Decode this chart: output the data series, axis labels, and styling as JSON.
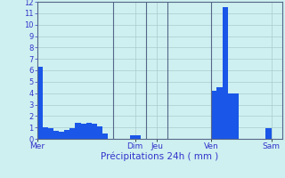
{
  "title": "Précipitations 24h ( mm )",
  "bar_color": "#1a56e8",
  "bg_color": "#cef0f0",
  "grid_color": "#aacccc",
  "text_color": "#3333cc",
  "vline_color": "#556688",
  "ylim": [
    0,
    12
  ],
  "yticks": [
    0,
    1,
    2,
    3,
    4,
    5,
    6,
    7,
    8,
    9,
    10,
    11,
    12
  ],
  "day_labels": [
    "Mer",
    "Dim",
    "Jeu",
    "Ven",
    "Sam"
  ],
  "day_tick_positions": [
    0,
    18,
    22,
    32,
    43
  ],
  "bar_values": [
    6.3,
    1.0,
    0.9,
    0.7,
    0.6,
    0.8,
    0.9,
    1.4,
    1.3,
    1.4,
    1.3,
    1.1,
    0.5,
    0.0,
    0.0,
    0.0,
    0.0,
    0.3,
    0.3,
    0.0,
    0.0,
    0.0,
    0.0,
    0.0,
    0.0,
    0.0,
    0.0,
    0.0,
    0.0,
    0.0,
    0.0,
    0.0,
    4.2,
    4.5,
    11.5,
    4.0,
    4.0,
    0.0,
    0.0,
    0.0,
    0.0,
    0.0,
    0.9,
    0.0,
    0.0
  ],
  "vline_positions": [
    14,
    20,
    24,
    32
  ],
  "n_bars": 45,
  "figsize": [
    3.2,
    2.0
  ],
  "dpi": 100
}
